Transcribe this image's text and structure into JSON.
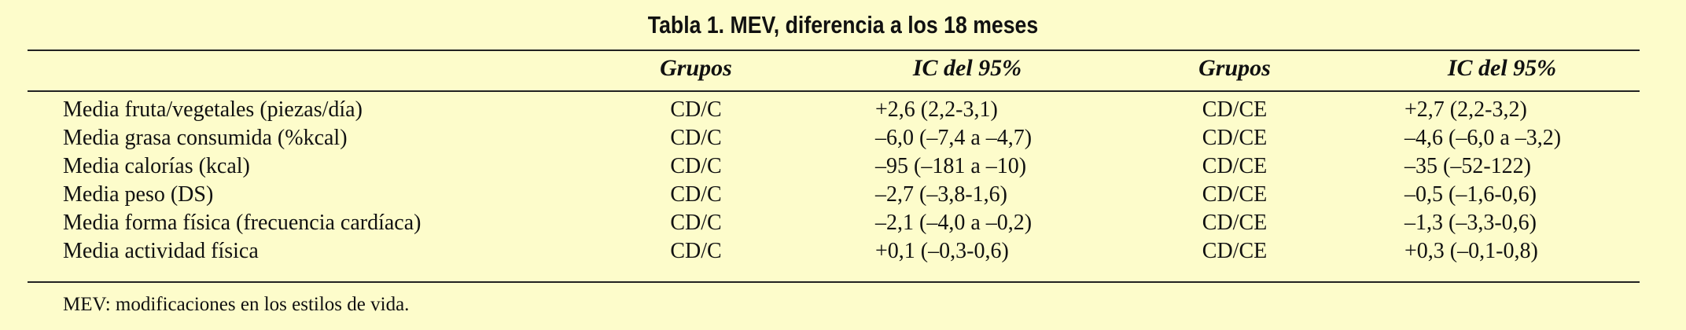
{
  "title": "Tabla 1. MEV, diferencia a los 18 meses",
  "headers": {
    "grupos_1": "Grupos",
    "ic_1": "IC del 95%",
    "grupos_2": "Grupos",
    "ic_2": "IC del 95%"
  },
  "rows": [
    {
      "label": "Media fruta/vegetales (piezas/día)",
      "g1": "CD/C",
      "ic1": "+2,6 (2,2-3,1)",
      "g2": "CD/CE",
      "ic2": "+2,7 (2,2-3,2)"
    },
    {
      "label": "Media grasa consumida (%kcal)",
      "g1": "CD/C",
      "ic1": "–6,0 (–7,4 a –4,7)",
      "g2": "CD/CE",
      "ic2": "–4,6 (–6,0 a –3,2)"
    },
    {
      "label": "Media calorías (kcal)",
      "g1": "CD/C",
      "ic1": "–95 (–181 a –10)",
      "g2": "CD/CE",
      "ic2": "–35 (–52-122)"
    },
    {
      "label": "Media peso (DS)",
      "g1": "CD/C",
      "ic1": "–2,7 (–3,8-1,6)",
      "g2": "CD/CE",
      "ic2": "–0,5 (–1,6-0,6)"
    },
    {
      "label": "Media forma física (frecuencia cardíaca)",
      "g1": "CD/C",
      "ic1": "–2,1 (–4,0 a –0,2)",
      "g2": "CD/CE",
      "ic2": "–1,3 (–3,3-0,6)"
    },
    {
      "label": "Media actividad física",
      "g1": "CD/C",
      "ic1": "+0,1 (–0,3-0,6)",
      "g2": "CD/CE",
      "ic2": "+0,3 (–0,1-0,8)"
    }
  ],
  "footnote": "MEV: modificaciones en los estilos de vida."
}
